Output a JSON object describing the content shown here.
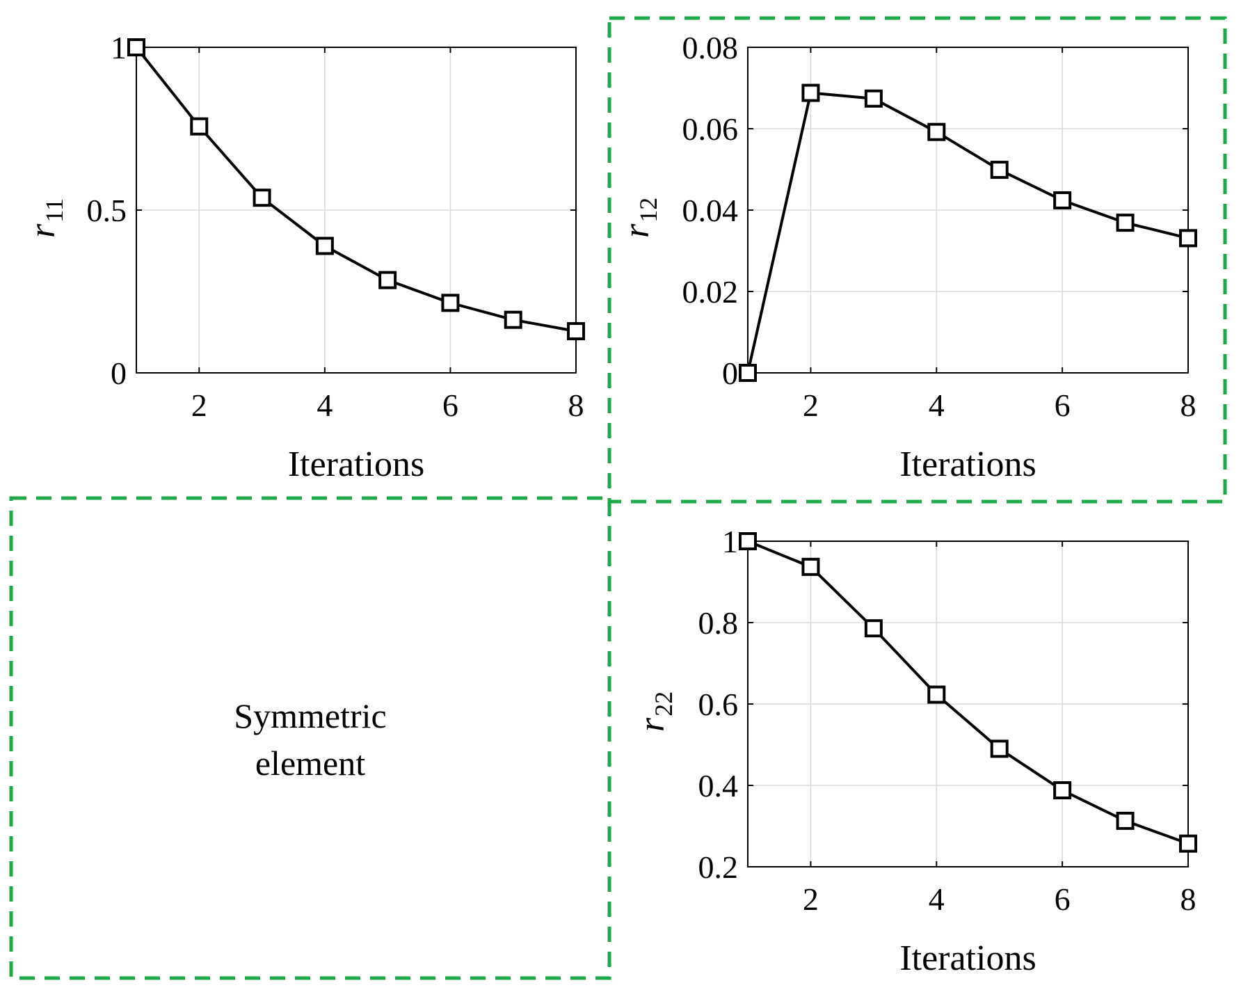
{
  "colors": {
    "accent": "#1ea84a",
    "ink": "#000000",
    "grid": "#d9d9d9"
  },
  "symmetric_note": {
    "line1": "Symmetric",
    "line2": "element"
  },
  "chart_data": [
    {
      "id": "r11",
      "type": "line",
      "ylabel_main": "r",
      "ylabel_sub": "11",
      "xlabel": "Iterations",
      "x": [
        1,
        2,
        3,
        4,
        5,
        6,
        7,
        8
      ],
      "values": [
        1.0,
        0.757,
        0.538,
        0.39,
        0.285,
        0.215,
        0.163,
        0.128
      ],
      "xlim": [
        1,
        8
      ],
      "ylim": [
        0,
        1
      ],
      "xticks": [
        2,
        4,
        6,
        8
      ],
      "xtick_labels": [
        "2",
        "4",
        "6",
        "8"
      ],
      "yticks": [
        0,
        0.5,
        1
      ],
      "ytick_labels": [
        "0",
        "0.5",
        "1"
      ],
      "grid": true,
      "marker": "square"
    },
    {
      "id": "r12",
      "type": "line",
      "ylabel_main": "r",
      "ylabel_sub": "12",
      "xlabel": "Iterations",
      "x": [
        1,
        2,
        3,
        4,
        5,
        6,
        7,
        8
      ],
      "values": [
        0.0,
        0.0688,
        0.0674,
        0.0592,
        0.0499,
        0.0424,
        0.0369,
        0.0331
      ],
      "xlim": [
        1,
        8
      ],
      "ylim": [
        0,
        0.08
      ],
      "xticks": [
        2,
        4,
        6,
        8
      ],
      "xtick_labels": [
        "2",
        "4",
        "6",
        "8"
      ],
      "yticks": [
        0,
        0.02,
        0.04,
        0.06,
        0.08
      ],
      "ytick_labels": [
        "0",
        "0.02",
        "0.04",
        "0.06",
        "0.08"
      ],
      "grid": true,
      "marker": "square",
      "highlighted": true
    },
    {
      "id": "r22",
      "type": "line",
      "ylabel_main": "r",
      "ylabel_sub": "22",
      "xlabel": "Iterations",
      "x": [
        1,
        2,
        3,
        4,
        5,
        6,
        7,
        8
      ],
      "values": [
        1.0,
        0.937,
        0.786,
        0.623,
        0.49,
        0.388,
        0.313,
        0.257
      ],
      "xlim": [
        1,
        8
      ],
      "ylim": [
        0.2,
        1
      ],
      "xticks": [
        2,
        4,
        6,
        8
      ],
      "xtick_labels": [
        "2",
        "4",
        "6",
        "8"
      ],
      "yticks": [
        0.2,
        0.4,
        0.6,
        0.8,
        1
      ],
      "ytick_labels": [
        "0.2",
        "0.4",
        "0.6",
        "0.8",
        "1"
      ],
      "grid": true,
      "marker": "square"
    }
  ]
}
